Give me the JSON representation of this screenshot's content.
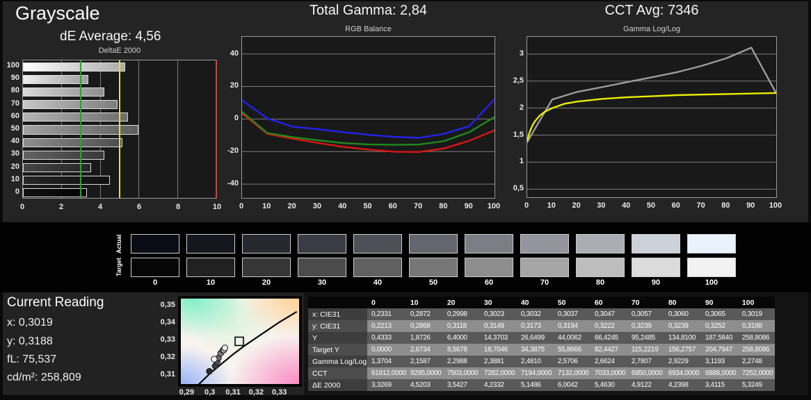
{
  "header": {
    "title": "Grayscale",
    "de_average": "dE Average: 4,56",
    "total_gamma": "Total Gamma: 2,84",
    "cct_avg": "CCT Avg: 7346"
  },
  "chart_data": [
    {
      "type": "bar",
      "orientation": "horizontal",
      "title": "DeltaE 2000",
      "categories": [
        "100",
        "90",
        "80",
        "70",
        "60",
        "50",
        "40",
        "30",
        "20",
        "10",
        "0"
      ],
      "values": [
        5.3249,
        3.4115,
        4.2398,
        4.9122,
        5.463,
        6.0042,
        5.1486,
        4.2332,
        3.5427,
        4.5203,
        3.3269
      ],
      "xlim": [
        0,
        10
      ],
      "x_ticks": [
        "0",
        "2",
        "4",
        "6",
        "8",
        "10"
      ],
      "x_gridlines": [
        2,
        4,
        6,
        8
      ],
      "reference_lines": [
        {
          "value": 3,
          "color": "#2f9e2f",
          "name": "green-threshold-line"
        },
        {
          "value": 5,
          "color": "#e8e800",
          "name": "yellow-threshold-line"
        },
        {
          "value": 10,
          "color": "#c24848",
          "name": "red-limit-line"
        }
      ],
      "bar_gradients": [
        [
          "#ffffff",
          "#ababab"
        ],
        [
          "#eeeeee",
          "#9d9d9d"
        ],
        [
          "#d8d8d8",
          "#8d8d8d"
        ],
        [
          "#c6c6c6",
          "#7d7d7d"
        ],
        [
          "#b4b4b4",
          "#6d6d6d"
        ],
        [
          "#a2a2a2",
          "#5d5d5d"
        ],
        [
          "#8e8e8e",
          "#4c4c4c"
        ],
        [
          "#636363",
          "#383838"
        ],
        [
          "#454545",
          "#262626"
        ],
        [
          "#262626",
          "#101010"
        ],
        [
          "#101010",
          "#040404"
        ]
      ],
      "grid": true,
      "legend": false
    },
    {
      "type": "line",
      "title": "RGB Balance",
      "x": [
        0,
        10,
        20,
        30,
        40,
        50,
        60,
        70,
        80,
        90,
        100
      ],
      "x_tick_labels": [
        "0",
        "10",
        "20",
        "30",
        "40",
        "50",
        "60",
        "70",
        "80",
        "90",
        "100"
      ],
      "ylim": [
        -48.5,
        50.5
      ],
      "y_ticks": [
        {
          "v": 40,
          "label": "40"
        },
        {
          "v": 20,
          "label": "20"
        },
        {
          "v": 0,
          "label": "0"
        },
        {
          "v": -20,
          "label": "-20"
        },
        {
          "v": -40,
          "label": "-40"
        }
      ],
      "series": [
        {
          "name": "red",
          "color": "#dd1414",
          "values": [
            3.4,
            -9.1,
            -12.1,
            -14.7,
            -17.1,
            -18.8,
            -20.1,
            -20.3,
            -18.1,
            -13.4,
            -7.0
          ]
        },
        {
          "name": "green",
          "color": "#1e8a1e",
          "values": [
            4.4,
            -8.6,
            -11.1,
            -13.1,
            -14.8,
            -15.6,
            -15.9,
            -15.7,
            -13.6,
            -8.1,
            1.2
          ]
        },
        {
          "name": "blue",
          "color": "#2222ee",
          "values": [
            11.5,
            0.3,
            -4.7,
            -6.3,
            -8.1,
            -9.7,
            -11.0,
            -11.6,
            -9.1,
            -4.4,
            12.2
          ]
        }
      ],
      "grid": true,
      "legend": false
    },
    {
      "type": "line",
      "title": "Gamma Log/Log",
      "x_tick_labels": [
        "0",
        "10",
        "20",
        "30",
        "40",
        "50",
        "60",
        "70",
        "80",
        "90",
        "100"
      ],
      "xlim": [
        0,
        100
      ],
      "ylim": [
        0.35,
        3.32
      ],
      "y_ticks": [
        {
          "v": 3,
          "label": "3"
        },
        {
          "v": 2.5,
          "label": "2,5"
        },
        {
          "v": 2,
          "label": "2"
        },
        {
          "v": 1.5,
          "label": "1,5"
        },
        {
          "v": 1,
          "label": "1"
        },
        {
          "v": 0.5,
          "label": "0,5"
        }
      ],
      "series": [
        {
          "name": "measured-gamma",
          "color": "#9c9c9c",
          "x": [
            0,
            10,
            20,
            30,
            40,
            50,
            60,
            70,
            80,
            90,
            100
          ],
          "values": [
            1.3704,
            2.1587,
            2.2988,
            2.3881,
            2.481,
            2.5706,
            2.6624,
            2.7807,
            2.9229,
            3.1193,
            2.2748
          ]
        },
        {
          "name": "target-gamma",
          "color": "#eded00",
          "x": [
            0,
            1,
            2,
            3,
            5,
            7,
            10,
            15,
            20,
            30,
            40,
            50,
            60,
            70,
            80,
            90,
            100
          ],
          "values": [
            1.4,
            1.56,
            1.67,
            1.75,
            1.86,
            1.93,
            2.0,
            2.08,
            2.12,
            2.17,
            2.2,
            2.22,
            2.24,
            2.25,
            2.26,
            2.27,
            2.28
          ]
        }
      ],
      "grid": true,
      "legend": false
    },
    {
      "type": "scatter",
      "title": "CIE 1931 xy white point detail",
      "xlim": [
        0.2875,
        0.3385
      ],
      "ylim": [
        0.3045,
        0.3535
      ],
      "x_ticks": [
        {
          "v": 0.29,
          "label": "0,29"
        },
        {
          "v": 0.3,
          "label": "0,3"
        },
        {
          "v": 0.31,
          "label": "0,31"
        },
        {
          "v": 0.32,
          "label": "0,32"
        },
        {
          "v": 0.33,
          "label": "0,33"
        }
      ],
      "y_ticks": [
        {
          "v": 0.35,
          "label": "0,35"
        },
        {
          "v": 0.34,
          "label": "0,34"
        },
        {
          "v": 0.33,
          "label": "0,33"
        },
        {
          "v": 0.32,
          "label": "0,32"
        },
        {
          "v": 0.31,
          "label": "0,31"
        }
      ],
      "locus": [
        [
          0.295,
          0.304
        ],
        [
          0.3,
          0.3105
        ],
        [
          0.305,
          0.316
        ],
        [
          0.31,
          0.3215
        ],
        [
          0.315,
          0.3265
        ],
        [
          0.32,
          0.331
        ],
        [
          0.325,
          0.3355
        ],
        [
          0.33,
          0.34
        ],
        [
          0.3375,
          0.346
        ]
      ],
      "target_square": {
        "x": 0.3127,
        "y": 0.329
      },
      "points": [
        {
          "x": 0.2998,
          "y": 0.3118,
          "fill": "#2e2e2e"
        },
        {
          "x": 0.3023,
          "y": 0.3149,
          "fill": "#3d3d3d"
        },
        {
          "x": 0.3032,
          "y": 0.3173,
          "fill": "#525252"
        },
        {
          "x": 0.3037,
          "y": 0.3194,
          "fill": "#686868"
        },
        {
          "x": 0.3047,
          "y": 0.3222,
          "fill": "#808080"
        },
        {
          "x": 0.3057,
          "y": 0.3239,
          "fill": "#9a9a9a"
        },
        {
          "x": 0.306,
          "y": 0.3239,
          "fill": "#b4b4b4"
        },
        {
          "x": 0.3065,
          "y": 0.3252,
          "fill": "#ececec"
        },
        {
          "x": 0.3019,
          "y": 0.3188,
          "fill": "#ffffff"
        }
      ]
    }
  ],
  "swatches": {
    "row_labels": [
      "Actual",
      "Target"
    ],
    "columns": [
      "0",
      "10",
      "20",
      "30",
      "40",
      "50",
      "60",
      "70",
      "80",
      "90",
      "100"
    ],
    "actual_colors": [
      "#0b0b15",
      "#16161e",
      "#27272f",
      "#3b3b43",
      "#4f4f58",
      "#65656e",
      "#7d7d86",
      "#94949d",
      "#acacb5",
      "#ccd2da",
      "#eaf2fc"
    ],
    "target_colors": [
      "#060606",
      "#212121",
      "#363636",
      "#4b4b4b",
      "#606060",
      "#777777",
      "#8d8d8d",
      "#a5a5a5",
      "#bdbdbd",
      "#dcdcdc",
      "#f2f2f2"
    ]
  },
  "current_reading": {
    "title": "Current Reading",
    "lines": [
      "x: 0,3019",
      "y: 0,3188",
      "fL: 75,537",
      "cd/m²: 258,809"
    ]
  },
  "table": {
    "columns": [
      "0",
      "10",
      "20",
      "30",
      "40",
      "50",
      "60",
      "70",
      "80",
      "90",
      "100"
    ],
    "rows": [
      {
        "label": "x: CIE31",
        "values": [
          "0,2331",
          "0,2872",
          "0,2998",
          "0,3023",
          "0,3032",
          "0,3037",
          "0,3047",
          "0,3057",
          "0,3060",
          "0,3065",
          "0,3019"
        ]
      },
      {
        "label": "y: CIE31",
        "values": [
          "0,2213",
          "0,2868",
          "0,3118",
          "0,3149",
          "0,3173",
          "0,3194",
          "0,3222",
          "0,3239",
          "0,3239",
          "0,3252",
          "0,3188"
        ]
      },
      {
        "label": "Y",
        "values": [
          "0,4333",
          "1,8726",
          "6,4000",
          "14,3703",
          "26,6499",
          "44,0062",
          "66,4245",
          "95,2485",
          "134,8100",
          "187,5840",
          "258,8086"
        ]
      },
      {
        "label": "Target Y",
        "values": [
          "0,0000",
          "2,6734",
          "8,5678",
          "18,7046",
          "34,3875",
          "55,8666",
          "82,4427",
          "115,2219",
          "156,2757",
          "204,7947",
          "258,8086"
        ]
      },
      {
        "label": "Gamma Log/Log",
        "values": [
          "1,3704",
          "2,1587",
          "2,2988",
          "2,3881",
          "2,4810",
          "2,5706",
          "2,6624",
          "2,7807",
          "2,9229",
          "3,1193",
          "2,2748"
        ]
      },
      {
        "label": "CCT",
        "values": [
          "61912,0000",
          "9295,0000",
          "7503,0000",
          "7282,0000",
          "7194,0000",
          "7132,0000",
          "7033,0000",
          "6950,0000",
          "6934,0000",
          "6888,0000",
          "7252,0000"
        ]
      },
      {
        "label": "ΔE 2000",
        "values": [
          "3,3269",
          "4,5203",
          "3,5427",
          "4,2332",
          "5,1486",
          "6,0042",
          "5,4630",
          "4,9122",
          "4,2398",
          "3,4115",
          "5,3249"
        ]
      }
    ]
  }
}
